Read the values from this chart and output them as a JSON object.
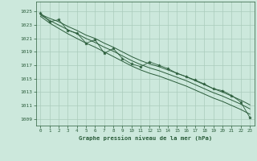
{
  "xlabel": "Graphe pression niveau de la mer (hPa)",
  "bg_color": "#cce8dc",
  "grid_color": "#aaccbb",
  "line_color": "#2a5c3a",
  "xmin": -0.5,
  "xmax": 23.5,
  "ymin": 1008.0,
  "ymax": 1026.5,
  "yticks": [
    1009,
    1011,
    1013,
    1015,
    1017,
    1019,
    1021,
    1023,
    1025
  ],
  "xticks": [
    0,
    1,
    2,
    3,
    4,
    5,
    6,
    7,
    8,
    9,
    10,
    11,
    12,
    13,
    14,
    15,
    16,
    17,
    18,
    19,
    20,
    21,
    22,
    23
  ],
  "jagged_data": [
    1024.8,
    1023.5,
    1023.8,
    1022.2,
    1021.8,
    1020.3,
    1020.8,
    1018.8,
    1019.5,
    1018.0,
    1017.2,
    1016.8,
    1017.5,
    1017.0,
    1016.5,
    1015.8,
    1015.3,
    1014.8,
    1014.2,
    1013.5,
    1013.2,
    1012.5,
    1011.5,
    1009.2
  ],
  "smooth_upper": [
    1024.6,
    1024.0,
    1023.5,
    1022.8,
    1022.2,
    1021.5,
    1021.0,
    1020.3,
    1019.7,
    1019.0,
    1018.3,
    1017.7,
    1017.2,
    1016.8,
    1016.3,
    1015.8,
    1015.3,
    1014.7,
    1014.1,
    1013.5,
    1013.0,
    1012.4,
    1011.8,
    1011.1
  ],
  "smooth_mid": [
    1024.5,
    1023.7,
    1023.0,
    1022.3,
    1021.7,
    1021.0,
    1020.4,
    1019.7,
    1019.1,
    1018.4,
    1017.7,
    1017.1,
    1016.6,
    1016.2,
    1015.7,
    1015.2,
    1014.7,
    1014.1,
    1013.5,
    1012.9,
    1012.4,
    1011.8,
    1011.2,
    1010.5
  ],
  "smooth_lower": [
    1024.3,
    1023.3,
    1022.5,
    1021.7,
    1021.0,
    1020.3,
    1019.7,
    1019.0,
    1018.3,
    1017.6,
    1016.9,
    1016.3,
    1015.8,
    1015.4,
    1014.9,
    1014.4,
    1013.9,
    1013.3,
    1012.7,
    1012.1,
    1011.6,
    1011.0,
    1010.4,
    1009.7
  ]
}
